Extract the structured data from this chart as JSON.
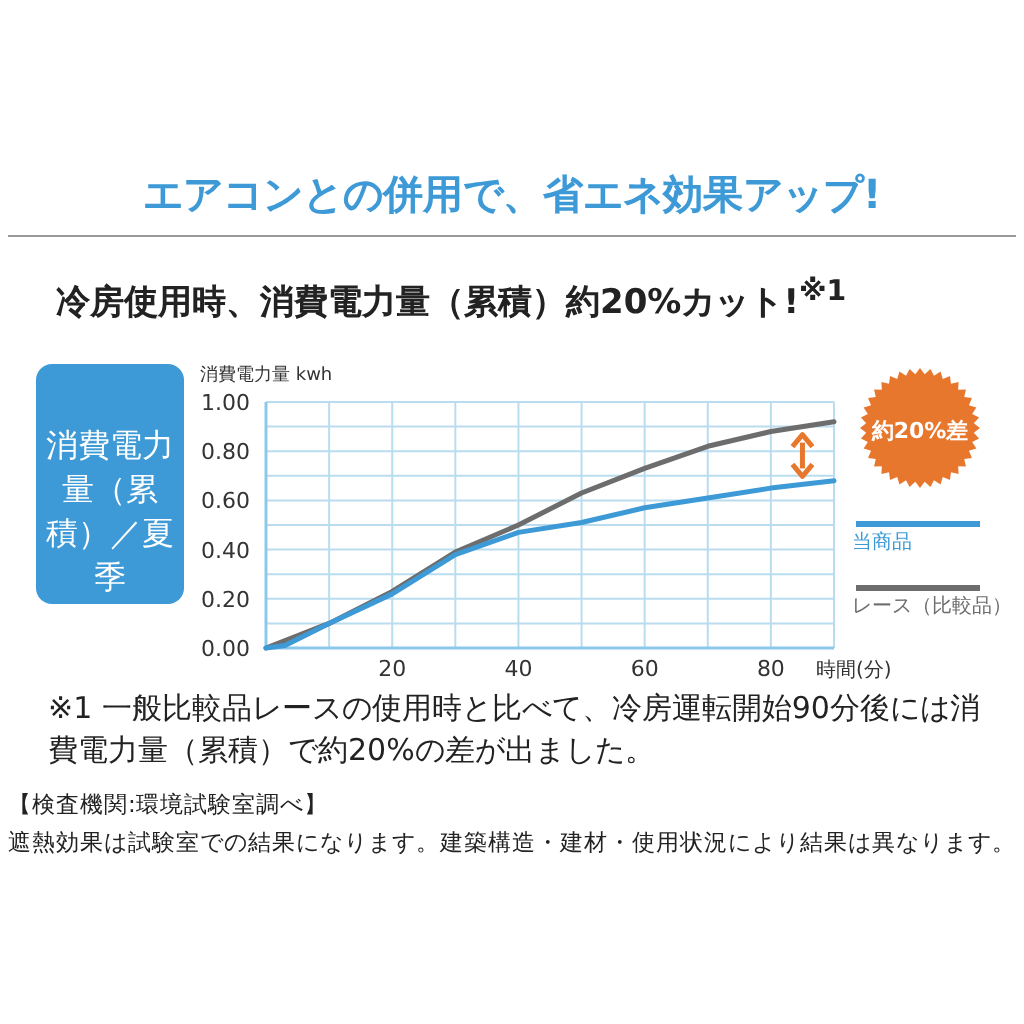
{
  "chart_data": {
    "type": "line",
    "title": "エアコンとの併用で、省エネ効果アップ!",
    "subtitle": "冷房使用時、消費電力量（累積）約20%カット!$^{※1}$",
    "xlabel": "時間(分)",
    "ylabel": "消費電力量 kwh",
    "annotations": [
      "約20%差",
      "消費電力量（累積）／夏季",
      "※1 一般比較品レースの使用時と比べて、冷房運転開始90分後には消費電力量（累積）で約20%の差が出ました。",
      "【検査機関:環境試験室調べ】",
      "遮熱効果は試験室での結果になります。建築構造・建材・使用状況により結果は異なります。"
    ],
    "x": [
      0,
      3,
      10,
      20,
      30,
      40,
      50,
      60,
      70,
      80,
      90
    ],
    "series": [
      {
        "name": "当商品",
        "color": "#3d9ad6",
        "values": [
          0,
          0.01,
          0.1,
          0.22,
          0.38,
          0.47,
          0.51,
          0.57,
          0.61,
          0.65,
          0.68
        ]
      },
      {
        "name": "レース（比較品）",
        "color": "#6d6d6d",
        "x": [
          0,
          10,
          20,
          30,
          40,
          50,
          60,
          70,
          80,
          90
        ],
        "values": [
          0,
          0.1,
          0.23,
          0.39,
          0.5,
          0.63,
          0.73,
          0.82,
          0.88,
          0.92
        ]
      }
    ],
    "xlim": [
      0,
      90
    ],
    "ylim": [
      0,
      1
    ],
    "xticks": [
      {
        "value": 0,
        "label": null
      },
      {
        "value": 10,
        "label": null
      },
      20,
      {
        "value": 30,
        "label": null
      },
      40,
      {
        "value": 50,
        "label": null
      },
      60,
      {
        "value": 70,
        "label": null
      },
      80,
      {
        "value": 90,
        "label": null
      }
    ],
    "yticks": [
      {
        "value": 0,
        "label": "0.00"
      },
      {
        "value": 0.1,
        "label": null
      },
      {
        "value": 0.2,
        "label": "0.20"
      },
      {
        "value": 0.3,
        "label": null
      },
      {
        "value": 0.4,
        "label": "0.40"
      },
      {
        "value": 0.5,
        "label": null
      },
      {
        "value": 0.6,
        "label": "0.60"
      },
      {
        "value": 0.7,
        "label": null
      },
      {
        "value": 0.8,
        "label": "0.80"
      },
      {
        "value": 0.9,
        "label": null
      },
      {
        "value": 1,
        "label": "1.00"
      }
    ],
    "grid": true,
    "legend": "right",
    "marker": "none",
    "line_style": "solid"
  }
}
